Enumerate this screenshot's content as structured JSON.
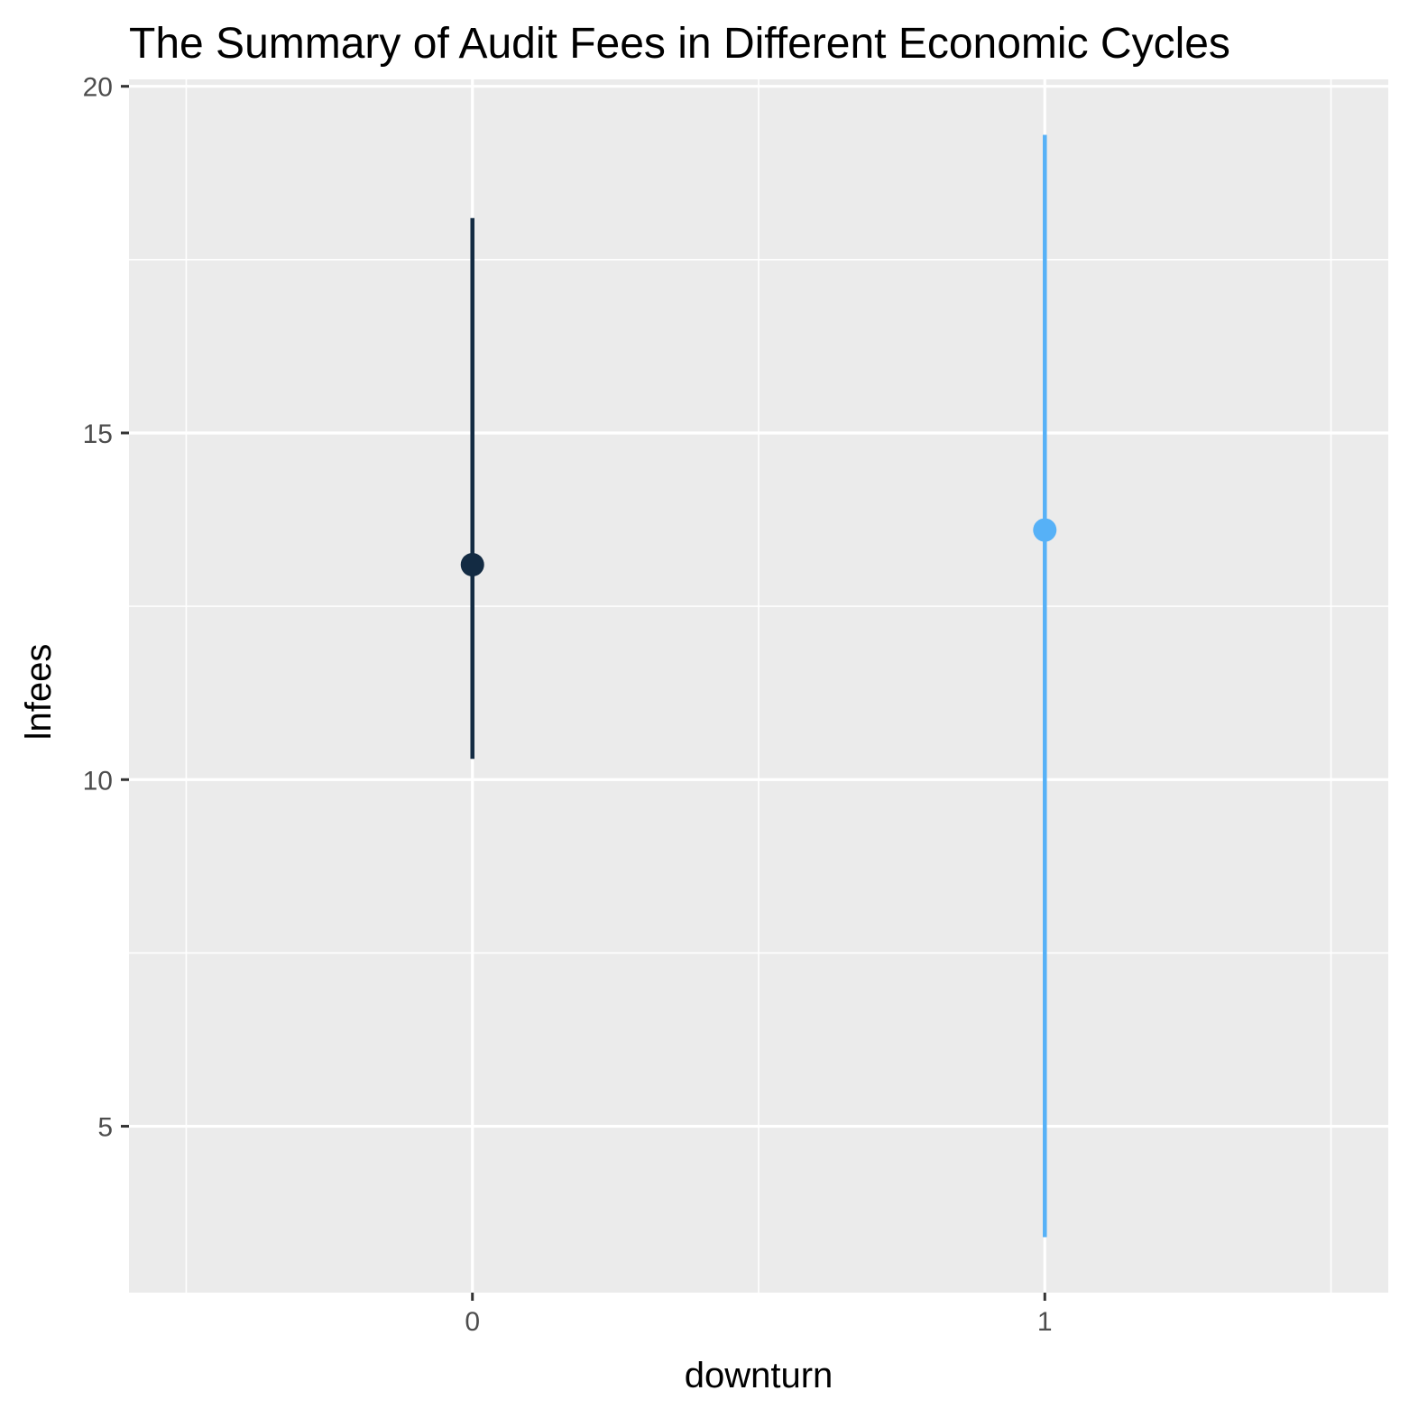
{
  "chart_data": {
    "type": "errorbar",
    "title": "The Summary of Audit Fees in Different Economic Cycles",
    "xlabel": "downturn",
    "ylabel": "lnfees",
    "categories": [
      "0",
      "1"
    ],
    "ylim": [
      2.6,
      20.1
    ],
    "yticks": [
      5,
      10,
      15,
      20
    ],
    "grid": true,
    "legend": "none",
    "points": [
      {
        "category": "0",
        "y": 13.1,
        "ymin": 10.3,
        "ymax": 18.1,
        "color": "#132b43"
      },
      {
        "category": "1",
        "y": 13.6,
        "ymin": 3.4,
        "ymax": 19.3,
        "color": "#56b1f7"
      }
    ],
    "panel_color": "#ebebeb",
    "grid_color": "#ffffff"
  }
}
